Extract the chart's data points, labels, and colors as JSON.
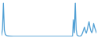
{
  "values": [
    80,
    400,
    1800,
    350,
    120,
    60,
    40,
    30,
    25,
    20,
    18,
    15,
    12,
    10,
    10,
    10,
    10,
    10,
    10,
    10,
    10,
    10,
    10,
    10,
    10,
    10,
    10,
    10,
    10,
    10,
    10,
    10,
    10,
    10,
    10,
    10,
    10,
    10,
    10,
    10,
    10,
    10,
    10,
    10,
    10,
    10,
    10,
    10,
    10,
    10,
    10,
    10,
    10,
    10,
    10,
    10,
    10,
    10,
    10,
    10,
    10,
    10,
    10,
    10,
    10,
    10,
    10,
    10,
    10,
    10,
    10,
    10,
    10,
    10,
    10,
    10,
    15,
    15,
    900,
    200,
    1800,
    350,
    80,
    40,
    20,
    15,
    30,
    80,
    200,
    350,
    500,
    300,
    180,
    350,
    600,
    800,
    500,
    300,
    200,
    350,
    700,
    500,
    350,
    200
  ],
  "line_color": "#4f9fd4",
  "background_color": "#ffffff",
  "linewidth": 0.9
}
